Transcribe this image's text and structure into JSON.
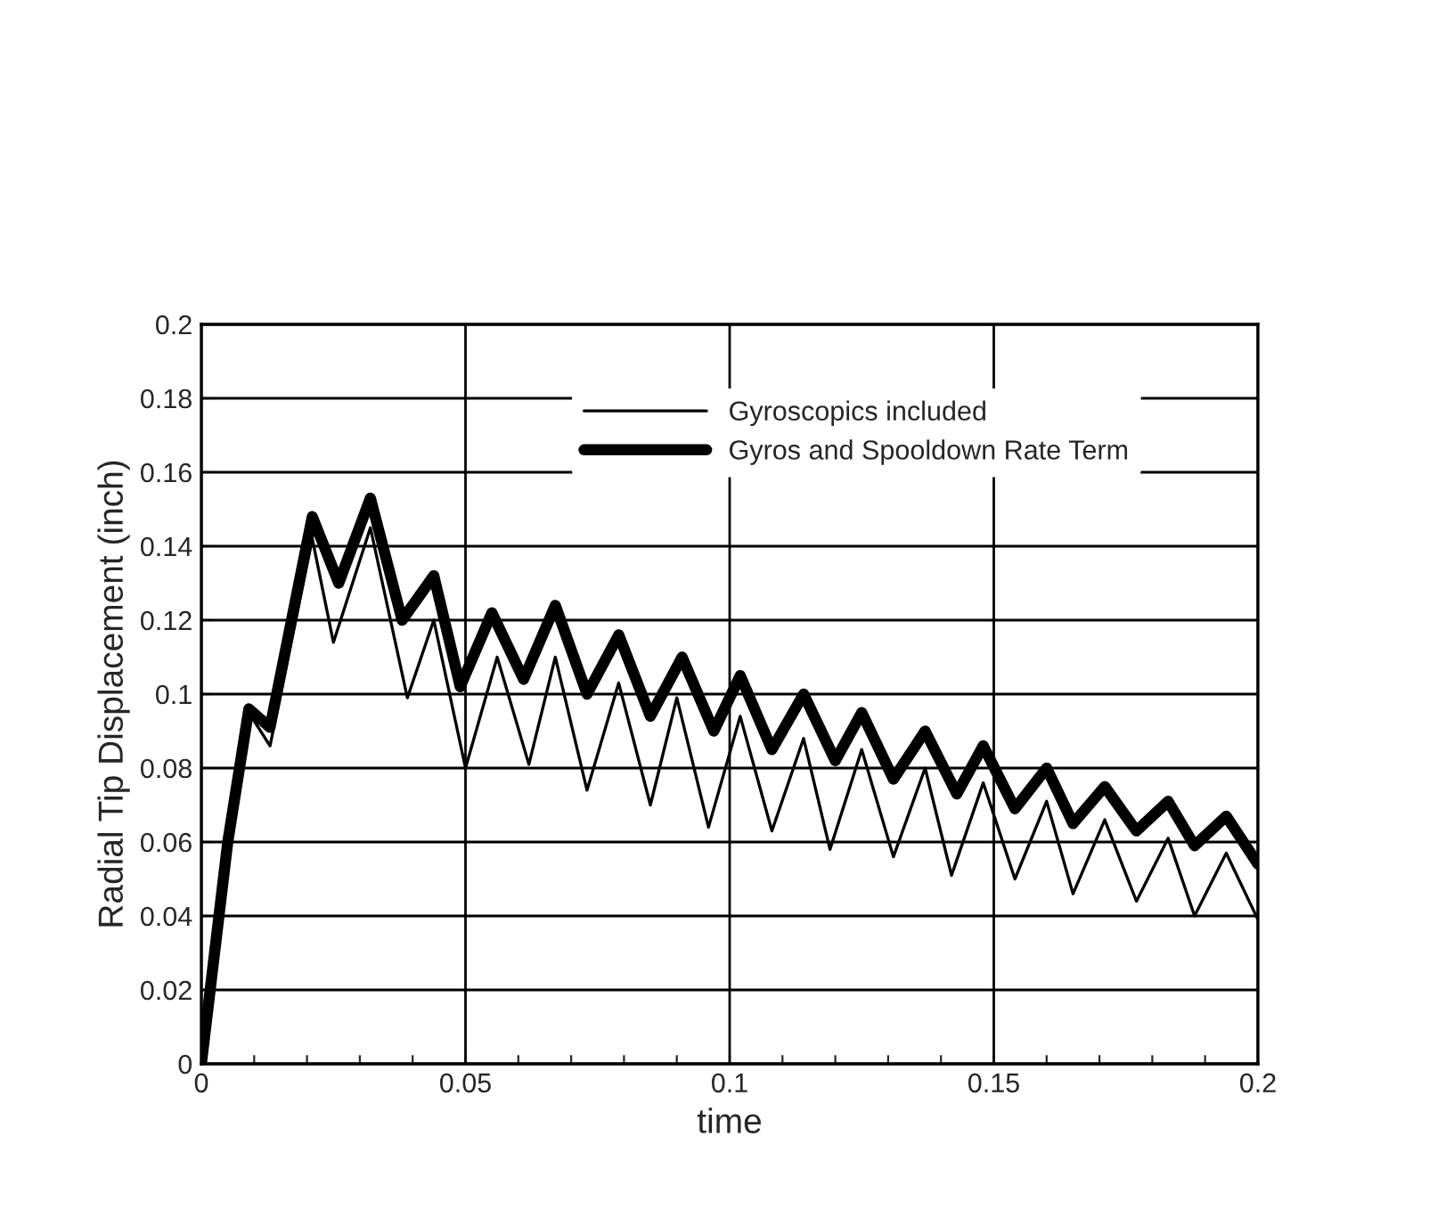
{
  "chart_data": {
    "type": "line",
    "xlabel": "time",
    "ylabel": "Radial Tip Displacement (inch)",
    "series": [
      {
        "name": "Gyroscopics included",
        "color": "#000000",
        "x": [
          0,
          0.005,
          0.009,
          0.013,
          0.021,
          0.025,
          0.032,
          0.039,
          0.044,
          0.05,
          0.056,
          0.062,
          0.067,
          0.073,
          0.079,
          0.085,
          0.09,
          0.096,
          0.102,
          0.108,
          0.114,
          0.119,
          0.125,
          0.131,
          0.137,
          0.142,
          0.148,
          0.154,
          0.16,
          0.165,
          0.171,
          0.177,
          0.183,
          0.188,
          0.194,
          0.2
        ],
        "values": [
          0,
          0.06,
          0.095,
          0.086,
          0.142,
          0.114,
          0.145,
          0.099,
          0.12,
          0.08,
          0.11,
          0.081,
          0.11,
          0.074,
          0.103,
          0.07,
          0.099,
          0.064,
          0.094,
          0.063,
          0.088,
          0.058,
          0.085,
          0.056,
          0.08,
          0.051,
          0.076,
          0.05,
          0.071,
          0.046,
          0.066,
          0.044,
          0.061,
          0.04,
          0.057,
          0.039
        ]
      },
      {
        "name": "Gyros and Spooldown Rate Term",
        "color": "#000000",
        "x": [
          0,
          0.005,
          0.009,
          0.013,
          0.021,
          0.026,
          0.032,
          0.038,
          0.044,
          0.049,
          0.055,
          0.061,
          0.067,
          0.073,
          0.079,
          0.085,
          0.091,
          0.097,
          0.102,
          0.108,
          0.114,
          0.12,
          0.125,
          0.131,
          0.137,
          0.143,
          0.148,
          0.154,
          0.16,
          0.165,
          0.171,
          0.177,
          0.183,
          0.188,
          0.194,
          0.2
        ],
        "values": [
          0,
          0.06,
          0.096,
          0.091,
          0.148,
          0.13,
          0.153,
          0.12,
          0.132,
          0.102,
          0.122,
          0.104,
          0.124,
          0.1,
          0.116,
          0.094,
          0.11,
          0.09,
          0.105,
          0.085,
          0.1,
          0.082,
          0.095,
          0.077,
          0.09,
          0.073,
          0.086,
          0.069,
          0.08,
          0.065,
          0.075,
          0.063,
          0.071,
          0.059,
          0.067,
          0.054
        ]
      }
    ],
    "xlim": [
      0,
      0.2
    ],
    "ylim": [
      0,
      0.2
    ],
    "xticks": [
      0,
      {
        "value": 0.01,
        "label": null
      },
      {
        "value": 0.02,
        "label": null
      },
      {
        "value": 0.03,
        "label": null
      },
      {
        "value": 0.04,
        "label": null
      },
      0.05,
      {
        "value": 0.06,
        "label": null
      },
      {
        "value": 0.07,
        "label": null
      },
      {
        "value": 0.08,
        "label": null
      },
      {
        "value": 0.09,
        "label": null
      },
      0.1,
      {
        "value": 0.11,
        "label": null
      },
      {
        "value": 0.12,
        "label": null
      },
      {
        "value": 0.13,
        "label": null
      },
      {
        "value": 0.14,
        "label": null
      },
      0.15,
      {
        "value": 0.16,
        "label": null
      },
      {
        "value": 0.17,
        "label": null
      },
      {
        "value": 0.18,
        "label": null
      },
      {
        "value": 0.19,
        "label": null
      },
      0.2
    ],
    "yticks": [
      0,
      0.02,
      0.04,
      0.06,
      0.08,
      0.1,
      0.12,
      0.14,
      0.16,
      0.18,
      0.2
    ],
    "grid": true,
    "legend": "top",
    "marker": "none",
    "line_style": "solid"
  }
}
